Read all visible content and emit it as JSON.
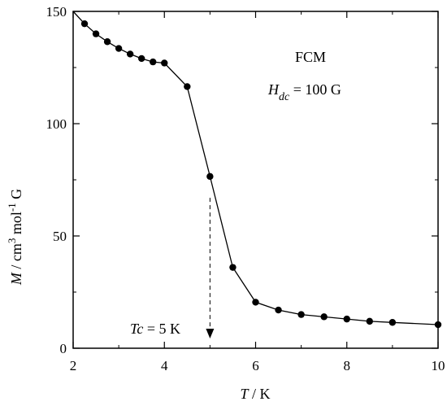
{
  "chart_data": {
    "type": "line",
    "xlabel": {
      "var": "T",
      "unit": " / K"
    },
    "ylabel": {
      "var": "M",
      "unit": " / cm",
      "sup1": "3",
      "mid": " mol",
      "sup2": "-1",
      "end": " G"
    },
    "xlim": [
      2,
      10
    ],
    "ylim": [
      0,
      150
    ],
    "x_ticks": [
      2,
      4,
      6,
      8,
      10
    ],
    "y_ticks": [
      0,
      50,
      100,
      150
    ],
    "series": [
      {
        "x": [
          2.25,
          2.5,
          2.75,
          3.0,
          3.25,
          3.5,
          3.75,
          4.0,
          4.5,
          5.0,
          5.5,
          6.0,
          6.5,
          7.0,
          7.5,
          8.0,
          8.5,
          9.0,
          10.0
        ],
        "y": [
          144.5,
          140.0,
          136.5,
          133.5,
          131.0,
          129.0,
          127.5,
          127.0,
          116.5,
          76.5,
          36.0,
          20.5,
          17.0,
          15.0,
          14.0,
          13.0,
          12.0,
          11.5,
          10.5
        ],
        "color": "#000000"
      }
    ],
    "annotations": {
      "mode": "FCM",
      "field": {
        "var": "H",
        "sub": "dc",
        "rest": " = 100 G"
      },
      "tc": {
        "var": "Tc",
        "rest": " = 5 K",
        "x": 5.0,
        "y_top": 67
      }
    }
  }
}
